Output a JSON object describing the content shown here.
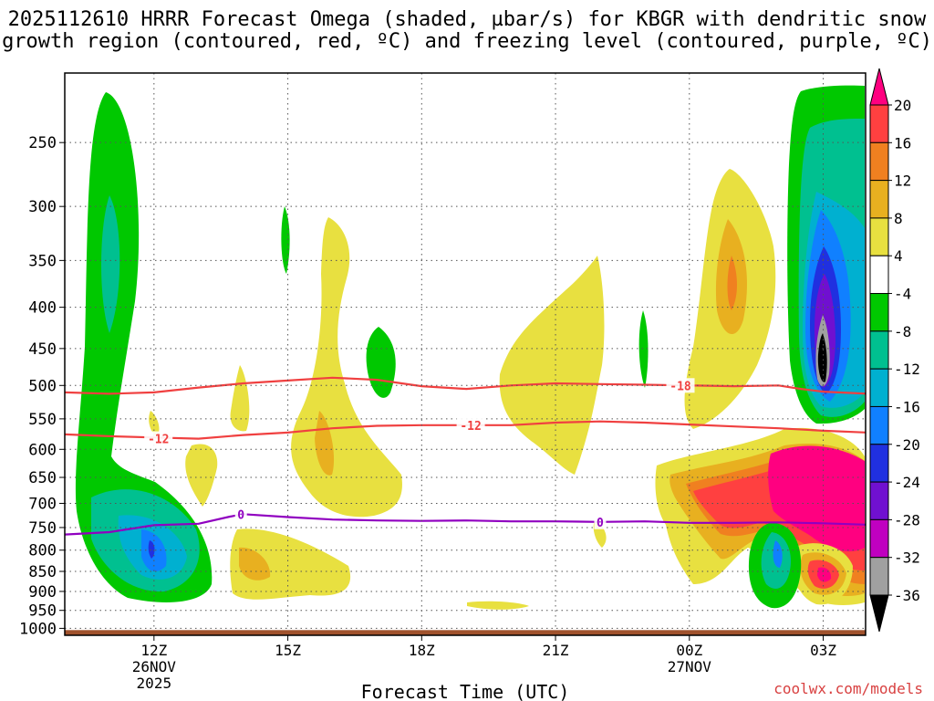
{
  "chart_data": {
    "type": "heatmap",
    "title_line1": "2025112610 HRRR Forecast Omega (shaded, µbar/s) for KBGR with dendritic snow",
    "title_line2": "growth region (contoured, red, ºC) and freezing level (contoured, purple, ºC)",
    "xlabel": "Forecast Time (UTC)",
    "credit": "coolwx.com/models",
    "x_ticks": [
      {
        "hour": 12,
        "label": "12Z",
        "sub1": "26NOV",
        "sub2": "2025"
      },
      {
        "hour": 15,
        "label": "15Z",
        "sub1": "",
        "sub2": ""
      },
      {
        "hour": 18,
        "label": "18Z",
        "sub1": "",
        "sub2": ""
      },
      {
        "hour": 21,
        "label": "21Z",
        "sub1": "",
        "sub2": ""
      },
      {
        "hour": 24,
        "label": "00Z",
        "sub1": "27NOV",
        "sub2": ""
      },
      {
        "hour": 27,
        "label": "03Z",
        "sub1": "",
        "sub2": ""
      }
    ],
    "xlim_hours": [
      10,
      27.95
    ],
    "y_ticks": [
      250,
      300,
      350,
      400,
      450,
      500,
      550,
      600,
      650,
      700,
      750,
      800,
      850,
      900,
      950,
      1000
    ],
    "y_tick_labels": [
      "250",
      "300",
      "350",
      "400",
      "450",
      "500",
      "550",
      "600",
      "650",
      "700",
      "750",
      "800",
      "850",
      "900",
      "950",
      "1000"
    ],
    "ylim_hPa": [
      1020,
      205
    ],
    "colorbar": {
      "labels": [
        "20",
        "16",
        "12",
        "8",
        "4",
        "-4",
        "-8",
        "-12",
        "-16",
        "-20",
        "-24",
        "-28",
        "-32",
        "-36"
      ],
      "colors": [
        "#ff0080",
        "#ff4040",
        "#f08020",
        "#e8b020",
        "#e8e040",
        "#ffffff",
        "#00c800",
        "#00c090",
        "#00b0d0",
        "#1080ff",
        "#2030e0",
        "#7010d0",
        "#c000c0",
        "#a0a0a0",
        "#000000"
      ]
    },
    "contours": [
      {
        "name": "dgz-top",
        "value": -18,
        "label": "-18",
        "color": "#f04040",
        "points": [
          [
            10,
            510
          ],
          [
            11,
            512
          ],
          [
            12,
            510
          ],
          [
            13,
            503
          ],
          [
            14,
            497
          ],
          [
            15,
            493
          ],
          [
            16,
            489
          ],
          [
            17,
            492
          ],
          [
            18,
            501
          ],
          [
            19,
            505
          ],
          [
            20,
            500
          ],
          [
            21,
            497
          ],
          [
            22,
            498
          ],
          [
            23,
            499
          ],
          [
            24,
            500
          ],
          [
            25,
            501
          ],
          [
            26,
            500
          ],
          [
            26.5,
            505
          ],
          [
            27,
            509
          ],
          [
            28,
            512
          ]
        ],
        "label_at": [
          23.8,
          500
        ]
      },
      {
        "name": "dgz-bottom",
        "value": -12,
        "label": "-12",
        "color": "#f04040",
        "points": [
          [
            10,
            575
          ],
          [
            11,
            578
          ],
          [
            12,
            580
          ],
          [
            13,
            582
          ],
          [
            14,
            576
          ],
          [
            15,
            572
          ],
          [
            16,
            565
          ],
          [
            17,
            561
          ],
          [
            18,
            560
          ],
          [
            19,
            560
          ],
          [
            20,
            560
          ],
          [
            21,
            556
          ],
          [
            22,
            554
          ],
          [
            23,
            556
          ],
          [
            24,
            559
          ],
          [
            25,
            562
          ],
          [
            26,
            565
          ],
          [
            27,
            569
          ],
          [
            28,
            572
          ]
        ],
        "label_at": [
          [
            12.1,
            582
          ],
          [
            19.1,
            560
          ]
        ]
      },
      {
        "name": "freezing-level",
        "value": 0,
        "label": "0",
        "color": "#9000c0",
        "points": [
          [
            10,
            765
          ],
          [
            11,
            760
          ],
          [
            12,
            745
          ],
          [
            13,
            742
          ],
          [
            13.7,
            727
          ],
          [
            14,
            722
          ],
          [
            15,
            728
          ],
          [
            16,
            733
          ],
          [
            17,
            735
          ],
          [
            18,
            736
          ],
          [
            19,
            735
          ],
          [
            20,
            737
          ],
          [
            21,
            737
          ],
          [
            22,
            738
          ],
          [
            23,
            737
          ],
          [
            24,
            740
          ],
          [
            25,
            740
          ],
          [
            26,
            739
          ],
          [
            27,
            741
          ],
          [
            28,
            744
          ]
        ],
        "label_at": [
          [
            13.95,
            722
          ],
          [
            22.0,
            738
          ]
        ]
      }
    ],
    "features": [
      {
        "name": "upward-motion-12z-column",
        "center": [
          10.95,
          470
        ],
        "rx_hours": 1.0,
        "ry_hPa": 240,
        "omega_min": -12
      },
      {
        "name": "upward-motion-12z-low-level",
        "center": [
          11.8,
          820
        ],
        "rx_hours": 1.3,
        "ry_hPa": 110,
        "omega_min": -20
      },
      {
        "name": "upward-motion-03z-core",
        "center": [
          27.0,
          480
        ],
        "rx_hours": 0.8,
        "ry_hPa": 300,
        "omega_min": -36
      },
      {
        "name": "downward-motion-01z-low-level",
        "center": [
          25.5,
          730
        ],
        "rx_hours": 2.3,
        "ry_hPa": 110,
        "omega_max": 20
      },
      {
        "name": "downward-motion-01z-upper",
        "center": [
          24.9,
          410
        ],
        "rx_hours": 0.8,
        "ry_hPa": 150,
        "omega_max": 12
      },
      {
        "name": "downward-motion-21z",
        "center": [
          20.9,
          500
        ],
        "rx_hours": 1.1,
        "ry_hPa": 130,
        "omega_max": 4
      },
      {
        "name": "downward-motion-16z",
        "center": [
          15.9,
          560
        ],
        "rx_hours": 1.0,
        "ry_hPa": 170,
        "omega_max": 8
      }
    ],
    "ground": {
      "pressure_hPa": 1005,
      "color": "#a0522d"
    }
  }
}
